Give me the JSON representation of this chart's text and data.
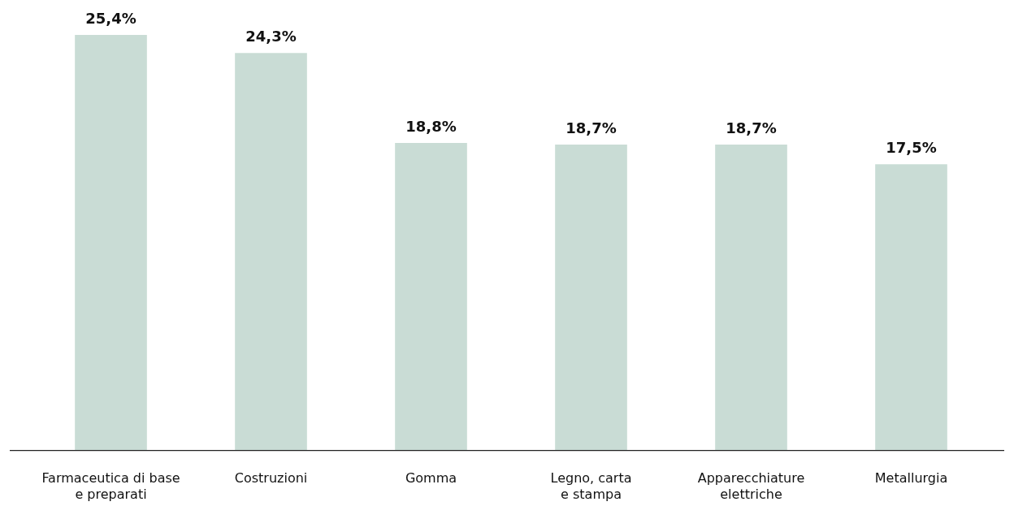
{
  "chart_data": {
    "type": "bar",
    "categories": [
      "Farmaceutica di base\ne preparati",
      "Costruzioni",
      "Gomma",
      "Legno, carta\ne stampa",
      "Apparecchiature\nelettriche",
      "Metallurgia"
    ],
    "values": [
      25.4,
      24.3,
      18.8,
      18.7,
      18.7,
      17.5
    ],
    "value_labels": [
      "25,4%",
      "24,3%",
      "18,8%",
      "18,7%",
      "18,7%",
      "17,5%"
    ],
    "color": "#c9dcd5",
    "tick_labels": "x",
    "grid": false,
    "legend": false
  }
}
